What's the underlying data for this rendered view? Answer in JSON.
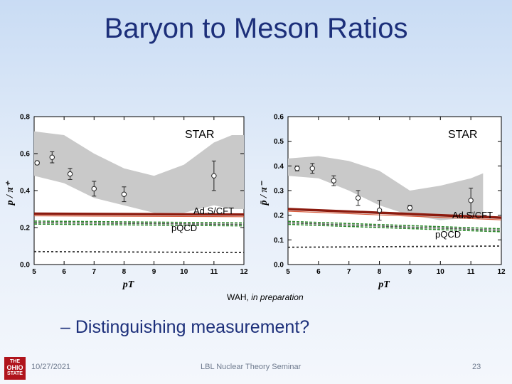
{
  "slide": {
    "title": "Baryon to Meson Ratios",
    "credit_name": "WAH,",
    "credit_note": "in preparation",
    "bullet": "– Distinguishing measurement?",
    "footer_date": "10/27/2021",
    "footer_seminar": "LBL Nuclear Theory Seminar",
    "footer_page": "23",
    "logo_lines": [
      "THE",
      "OHIO",
      "STATE"
    ]
  },
  "chart_data": [
    {
      "type": "scatter",
      "ylabel": "p / π⁺",
      "xlabel": "pT",
      "xlim": [
        5,
        12
      ],
      "ylim": [
        0,
        0.8
      ],
      "xticks": [
        "5",
        "6",
        "7",
        "8",
        "9",
        "10",
        "11",
        "12"
      ],
      "yticks": [
        "0.0",
        "0.2",
        "0.4",
        "0.6",
        "0.8"
      ],
      "colors": {
        "band": "#c9c9c9",
        "adscft": "#8b1a0e",
        "pqcd": "#2e8b2e",
        "dark": "#333333"
      },
      "series": [
        {
          "name": "STAR",
          "x": [
            5.1,
            5.6,
            6.2,
            7.0,
            8.0,
            11.0
          ],
          "y": [
            0.55,
            0.58,
            0.49,
            0.41,
            0.38,
            0.48
          ],
          "err": [
            0.01,
            0.03,
            0.03,
            0.04,
            0.04,
            0.08
          ]
        },
        {
          "name": "Ad.S/CFT",
          "x": [
            5,
            12
          ],
          "y": [
            0.275,
            0.27
          ]
        },
        {
          "name": "pQCD",
          "x": [
            5,
            12
          ],
          "y": [
            0.235,
            0.225
          ]
        }
      ],
      "band": {
        "x": [
          5,
          6,
          7,
          8,
          9,
          10,
          11,
          11.6,
          12
        ],
        "upper": [
          0.72,
          0.7,
          0.6,
          0.52,
          0.48,
          0.54,
          0.66,
          0.7,
          0.7
        ],
        "lower": [
          0.48,
          0.44,
          0.36,
          0.32,
          0.28,
          0.28,
          0.32,
          0.3,
          0.3
        ]
      }
    },
    {
      "type": "scatter",
      "ylabel": "p̄ / π⁻",
      "xlabel": "pT",
      "xlim": [
        5,
        12
      ],
      "ylim": [
        0,
        0.6
      ],
      "xticks": [
        "5",
        "6",
        "7",
        "8",
        "9",
        "10",
        "11",
        "12"
      ],
      "yticks": [
        "0.0",
        "0.1",
        "0.2",
        "0.3",
        "0.4",
        "0.5",
        "0.6"
      ],
      "colors": {
        "band": "#c9c9c9",
        "adscft": "#8b1a0e",
        "pqcd": "#2e8b2e",
        "dark": "#333333"
      },
      "series": [
        {
          "name": "STAR",
          "x": [
            5.3,
            5.8,
            6.5,
            7.3,
            8.0,
            9.0,
            11.0
          ],
          "y": [
            0.39,
            0.39,
            0.34,
            0.27,
            0.22,
            0.23,
            0.26
          ],
          "err": [
            0.01,
            0.02,
            0.02,
            0.03,
            0.04,
            0.01,
            0.05
          ]
        },
        {
          "name": "Ad.S/CFT",
          "x": [
            5,
            12
          ],
          "y": [
            0.225,
            0.19
          ]
        },
        {
          "name": "pQCD",
          "x": [
            5,
            12
          ],
          "y": [
            0.175,
            0.145
          ]
        }
      ],
      "band": {
        "x": [
          5,
          6,
          7,
          8,
          9,
          10,
          11,
          11.4
        ],
        "upper": [
          0.43,
          0.44,
          0.42,
          0.38,
          0.3,
          0.32,
          0.35,
          0.37
        ],
        "lower": [
          0.36,
          0.35,
          0.3,
          0.24,
          0.2,
          0.18,
          0.19,
          0.2
        ]
      }
    }
  ],
  "labels": {
    "star": "STAR",
    "adscft": "Ad.S/CFT",
    "pqcd": "pQCD"
  }
}
